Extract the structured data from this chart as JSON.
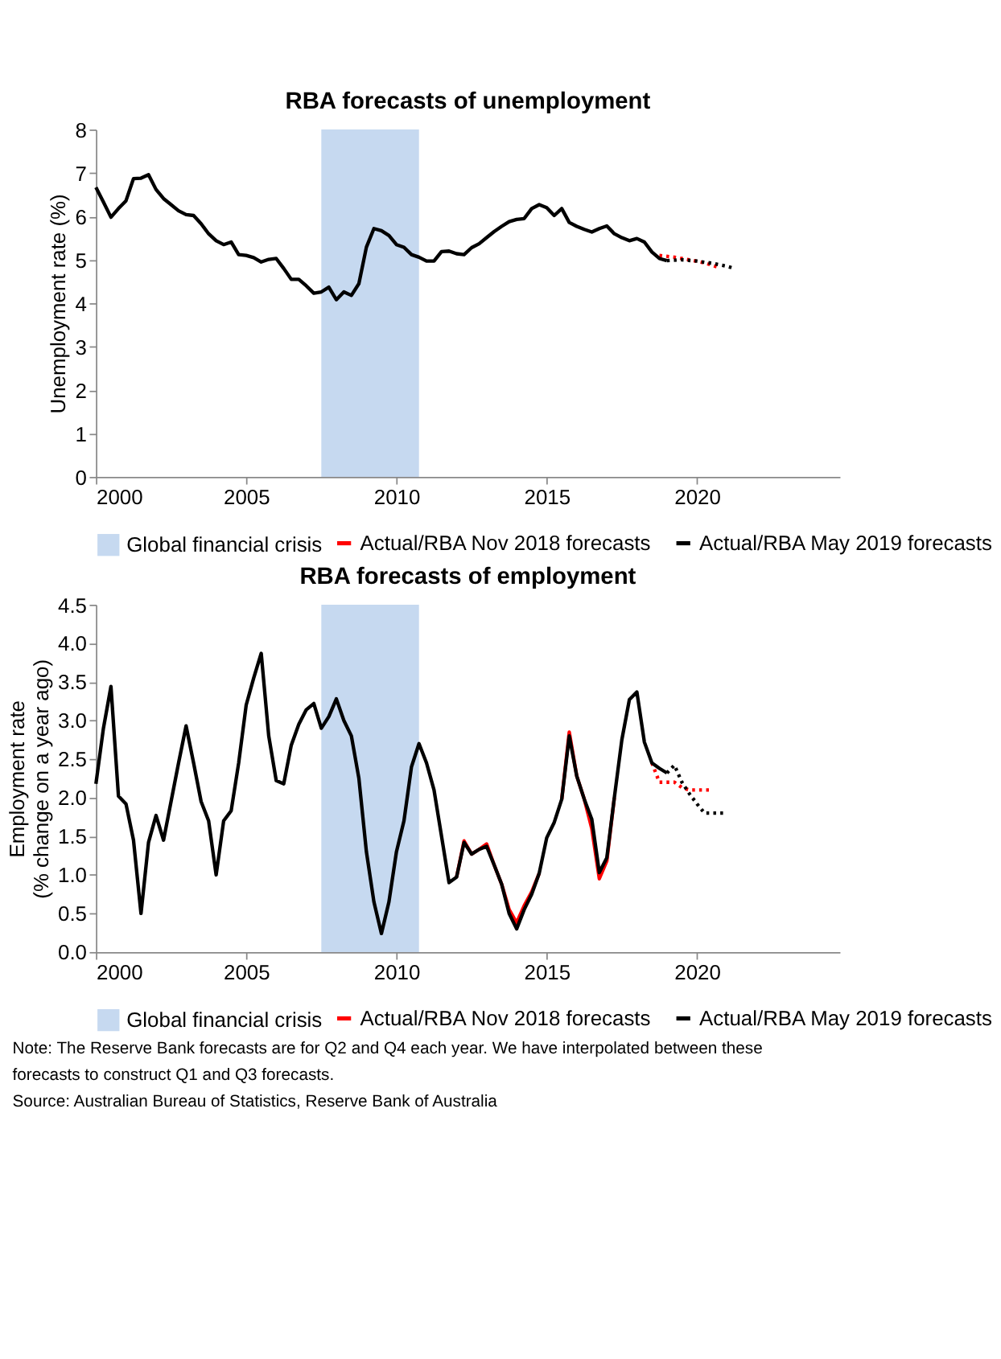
{
  "chart_data": [
    {
      "type": "line",
      "title": "RBA forecasts of unemployment",
      "ylabel": "Unemployment rate (%)",
      "legend": "bottom",
      "xlim": [
        2000,
        2024.75
      ],
      "xticks": [
        2000,
        2005,
        2010,
        2015,
        2020
      ],
      "ylim": [
        0,
        8
      ],
      "yticks": [
        0,
        1,
        2,
        3,
        4,
        5,
        6,
        7,
        8
      ],
      "x": [
        2000,
        2000.25,
        2000.5,
        2000.75,
        2001,
        2001.25,
        2001.5,
        2001.75,
        2002,
        2002.25,
        2002.5,
        2002.75,
        2003,
        2003.25,
        2003.5,
        2003.75,
        2004,
        2004.25,
        2004.5,
        2004.75,
        2005,
        2005.25,
        2005.5,
        2005.75,
        2006,
        2006.25,
        2006.5,
        2006.75,
        2007,
        2007.25,
        2007.5,
        2007.75,
        2008,
        2008.25,
        2008.5,
        2008.75,
        2009,
        2009.25,
        2009.5,
        2009.75,
        2010,
        2010.25,
        2010.5,
        2010.75,
        2011,
        2011.25,
        2011.5,
        2011.75,
        2012,
        2012.25,
        2012.5,
        2012.75,
        2013,
        2013.25,
        2013.5,
        2013.75,
        2014,
        2014.25,
        2014.5,
        2014.75,
        2015,
        2015.25,
        2015.5,
        2015.75,
        2016,
        2016.25,
        2016.5,
        2016.75,
        2017,
        2017.25,
        2017.5,
        2017.75,
        2018,
        2018.25,
        2018.5,
        2018.75,
        2019
      ],
      "series": [
        {
          "name": "Actual/RBA Nov 2018 forecasts",
          "color": "#ff0000",
          "line_style": "dotted",
          "x": [
            2018.75,
            2019.25,
            2019.75,
            2020.25,
            2020.75
          ],
          "values": [
            5.1,
            5.06,
            5.0,
            4.93,
            4.82
          ]
        },
        {
          "name": "Actual/RBA May 2019 forecasts",
          "color": "#000000",
          "line_style": "solid",
          "values": [
            6.67,
            6.33,
            5.98,
            6.18,
            6.36,
            6.87,
            6.88,
            6.96,
            6.62,
            6.41,
            6.27,
            6.13,
            6.04,
            6.02,
            5.83,
            5.6,
            5.44,
            5.35,
            5.41,
            5.12,
            5.1,
            5.05,
            4.95,
            5.01,
            5.03,
            4.8,
            4.55,
            4.55,
            4.4,
            4.23,
            4.26,
            4.37,
            4.08,
            4.26,
            4.18,
            4.45,
            5.29,
            5.72,
            5.67,
            5.56,
            5.35,
            5.29,
            5.12,
            5.06,
            4.97,
            4.97,
            5.19,
            5.2,
            5.14,
            5.12,
            5.28,
            5.37,
            5.51,
            5.65,
            5.77,
            5.88,
            5.93,
            5.95,
            6.18,
            6.27,
            6.2,
            6.02,
            6.18,
            5.86,
            5.77,
            5.7,
            5.64,
            5.72,
            5.78,
            5.6,
            5.51,
            5.44,
            5.49,
            5.41,
            5.18,
            5.03,
            4.98
          ]
        },
        {
          "color": "#000000",
          "line_style": "dotted",
          "x": [
            2019,
            2019.5,
            2020,
            2020.5,
            2021,
            2021.25
          ],
          "values": [
            4.98,
            5.0,
            4.97,
            4.92,
            4.85,
            4.8
          ]
        }
      ],
      "bands": [
        {
          "axis": "x",
          "from": 2007.5,
          "to": 2010.75,
          "label": "Global financial crisis",
          "color": "#c6d9f0"
        }
      ]
    },
    {
      "type": "line",
      "title": "RBA forecasts of employment",
      "ylabel": "Employment rate\n(% change on a year ago)",
      "legend": "bottom",
      "xlim": [
        2000,
        2024.75
      ],
      "xticks": [
        2000,
        2005,
        2010,
        2015,
        2020
      ],
      "ylim": [
        0,
        4.5
      ],
      "yticks": [
        {
          "value": 0,
          "label": "0.0"
        },
        0.5,
        {
          "value": 1,
          "label": "1.0"
        },
        1.5,
        {
          "value": 2,
          "label": "2.0"
        },
        2.5,
        {
          "value": 3,
          "label": "3.0"
        },
        3.5,
        {
          "value": 4,
          "label": "4.0"
        },
        4.5
      ],
      "x": [
        2000,
        2000.25,
        2000.5,
        2000.75,
        2001,
        2001.25,
        2001.5,
        2001.75,
        2002,
        2002.25,
        2002.5,
        2002.75,
        2003,
        2003.25,
        2003.5,
        2003.75,
        2004,
        2004.25,
        2004.5,
        2004.75,
        2005,
        2005.25,
        2005.5,
        2005.75,
        2006,
        2006.25,
        2006.5,
        2006.75,
        2007,
        2007.25,
        2007.5,
        2007.75,
        2008,
        2008.25,
        2008.5,
        2008.75,
        2009,
        2009.25,
        2009.5,
        2009.75,
        2010,
        2010.25,
        2010.5,
        2010.75,
        2011,
        2011.25,
        2011.5,
        2011.75,
        2012,
        2012.25,
        2012.5,
        2012.75,
        2013,
        2013.25,
        2013.5,
        2013.75,
        2014,
        2014.25,
        2014.5,
        2014.75,
        2015,
        2015.25,
        2015.5,
        2015.75,
        2016,
        2016.25,
        2016.5,
        2016.75,
        2017,
        2017.25,
        2017.5,
        2017.75,
        2018,
        2018.25,
        2018.5,
        2018.75,
        2019
      ],
      "series": [
        {
          "name": "Actual/RBA Nov 2018 forecasts",
          "color": "#ff0000",
          "line_style": "solid",
          "values": [
            null,
            null,
            null,
            null,
            null,
            null,
            null,
            null,
            null,
            null,
            null,
            null,
            null,
            null,
            null,
            null,
            null,
            null,
            null,
            null,
            null,
            null,
            null,
            null,
            null,
            null,
            null,
            null,
            null,
            null,
            null,
            null,
            null,
            null,
            null,
            null,
            null,
            null,
            null,
            null,
            null,
            null,
            null,
            null,
            null,
            null,
            null,
            null,
            0.97,
            1.44,
            1.27,
            1.33,
            1.4,
            1.13,
            0.88,
            0.55,
            0.38,
            0.6,
            0.78,
            1.02,
            null,
            null,
            1.98,
            2.85,
            2.28,
            1.98,
            1.6,
            0.95,
            1.18,
            2.0,
            null,
            null,
            null,
            null,
            null,
            null,
            null
          ]
        },
        {
          "color": "#ff0000",
          "line_style": "dotted",
          "x": [
            2018.5,
            2018.75,
            2019,
            2019.25,
            2019.5,
            2019.75,
            2020,
            2020.25,
            2020.5
          ],
          "values": [
            2.45,
            2.2,
            2.2,
            2.2,
            2.13,
            2.1,
            2.1,
            2.1,
            2.1
          ]
        },
        {
          "name": "Actual/RBA May 2019 forecasts",
          "color": "#000000",
          "line_style": "solid",
          "values": [
            2.18,
            2.9,
            3.44,
            2.02,
            1.92,
            1.45,
            0.5,
            1.42,
            1.77,
            1.45,
            1.95,
            2.45,
            2.93,
            2.45,
            1.95,
            1.7,
            1.0,
            1.7,
            1.83,
            2.45,
            3.2,
            3.55,
            3.87,
            2.8,
            2.22,
            2.18,
            2.68,
            2.95,
            3.14,
            3.22,
            2.9,
            3.05,
            3.28,
            3.0,
            2.8,
            2.25,
            1.3,
            0.65,
            0.24,
            0.65,
            1.3,
            1.7,
            2.4,
            2.7,
            2.45,
            2.1,
            1.5,
            0.9,
            0.97,
            1.42,
            1.27,
            1.33,
            1.37,
            1.13,
            0.88,
            0.5,
            0.3,
            0.55,
            0.75,
            1.02,
            1.48,
            1.68,
            1.98,
            2.8,
            2.28,
            1.98,
            1.72,
            1.03,
            1.22,
            2.0,
            2.75,
            3.27,
            3.37,
            2.72,
            2.45,
            2.38,
            2.32
          ]
        },
        {
          "color": "#000000",
          "line_style": "dotted",
          "x": [
            2019,
            2019.25,
            2019.5,
            2019.75,
            2020,
            2020.25,
            2020.5,
            2020.75,
            2021
          ],
          "values": [
            2.32,
            2.42,
            2.2,
            2.05,
            1.92,
            1.8,
            1.8,
            1.8,
            1.8
          ]
        }
      ],
      "bands": [
        {
          "axis": "x",
          "from": 2007.5,
          "to": 2010.75,
          "label": "Global financial crisis",
          "color": "#c6d9f0"
        }
      ],
      "annotations": [
        "Note: The Reserve Bank forecasts are for Q2 and Q4 each year. We have interpolated between these forecasts to construct Q1 and Q3 forecasts.",
        "Source: Australian Bureau of Statistics, Reserve Bank of Australia"
      ]
    }
  ]
}
